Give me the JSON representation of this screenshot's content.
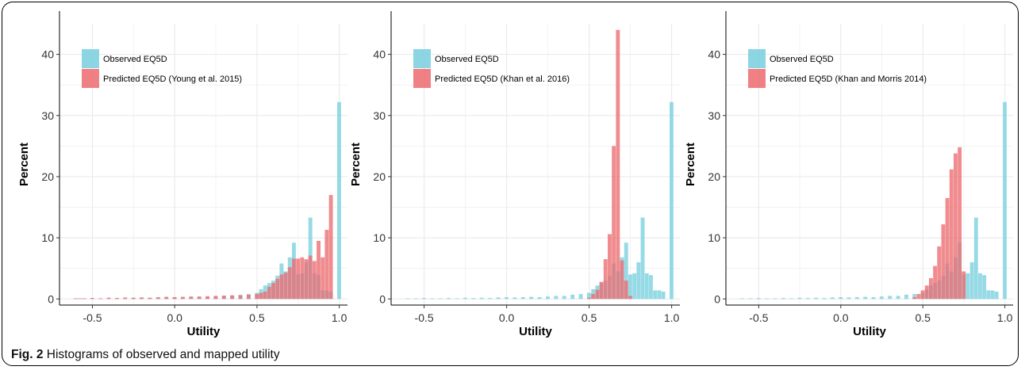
{
  "caption": {
    "label": "Fig. 2",
    "text": " Histograms of observed and mapped utility"
  },
  "colors": {
    "observed": "#78cfdf",
    "predicted": "#ec6b6f",
    "grid": "#ebebeb"
  },
  "chart_data": [
    {
      "type": "bar",
      "xlabel": "Utility",
      "ylabel": "Percent",
      "xlim": [
        -0.7,
        1.05
      ],
      "ylim": [
        -1,
        45
      ],
      "xticks": [
        -0.5,
        0.0,
        0.5,
        1.0
      ],
      "xtick_labels": [
        "-0.5",
        "0.0",
        "0.5",
        "1.0"
      ],
      "yticks": [
        0,
        10,
        20,
        30,
        40
      ],
      "ytick_labels": [
        "0",
        "10",
        "20",
        "30",
        "40"
      ],
      "grid": true,
      "legend_position": "top-left",
      "bin_width": 0.025,
      "series": [
        {
          "name": "Observed EQ5D",
          "color": "#78cfdf",
          "x": [
            -0.6,
            -0.55,
            -0.5,
            -0.45,
            -0.4,
            -0.35,
            -0.3,
            -0.25,
            -0.2,
            -0.15,
            -0.1,
            -0.05,
            0.0,
            0.05,
            0.1,
            0.15,
            0.2,
            0.25,
            0.3,
            0.35,
            0.4,
            0.45,
            0.5,
            0.525,
            0.55,
            0.575,
            0.6,
            0.625,
            0.65,
            0.675,
            0.7,
            0.725,
            0.75,
            0.775,
            0.8,
            0.825,
            0.85,
            0.875,
            0.9,
            0.925,
            0.95,
            1.0
          ],
          "values": [
            0.1,
            0.1,
            0.15,
            0.1,
            0.1,
            0.15,
            0.1,
            0.2,
            0.15,
            0.2,
            0.15,
            0.25,
            0.3,
            0.25,
            0.3,
            0.35,
            0.3,
            0.4,
            0.5,
            0.5,
            0.7,
            0.8,
            1.0,
            1.6,
            2.2,
            2.6,
            3.0,
            3.8,
            5.8,
            4.5,
            6.8,
            9.2,
            4.0,
            4.2,
            6.0,
            13.3,
            4.2,
            3.9,
            1.4,
            1.4,
            1.2,
            32.2
          ]
        },
        {
          "name": "Predicted EQ5D (Young et al. 2015)",
          "color": "#ec6b6f",
          "x": [
            -0.6,
            -0.575,
            -0.55,
            -0.5,
            -0.45,
            -0.4,
            -0.35,
            -0.3,
            -0.25,
            -0.2,
            -0.15,
            -0.1,
            -0.05,
            0.0,
            0.05,
            0.1,
            0.15,
            0.2,
            0.25,
            0.3,
            0.35,
            0.4,
            0.45,
            0.5,
            0.525,
            0.55,
            0.575,
            0.6,
            0.625,
            0.65,
            0.675,
            0.7,
            0.725,
            0.75,
            0.775,
            0.8,
            0.825,
            0.85,
            0.875,
            0.9,
            0.925,
            0.95
          ],
          "values": [
            0.1,
            0.1,
            0.1,
            0.15,
            0.1,
            0.2,
            0.15,
            0.25,
            0.2,
            0.25,
            0.2,
            0.3,
            0.35,
            0.3,
            0.35,
            0.4,
            0.4,
            0.45,
            0.5,
            0.55,
            0.6,
            0.6,
            0.7,
            0.8,
            1.0,
            1.2,
            2.0,
            2.6,
            3.3,
            4.0,
            4.3,
            5.2,
            6.6,
            6.6,
            6.8,
            6.5,
            7.1,
            6.2,
            9.5,
            6.8,
            11.3,
            17.0
          ]
        }
      ]
    },
    {
      "type": "bar",
      "xlabel": "Utility",
      "ylabel": "Percent",
      "xlim": [
        -0.7,
        1.05
      ],
      "ylim": [
        -1,
        45
      ],
      "xticks": [
        -0.5,
        0.0,
        0.5,
        1.0
      ],
      "xtick_labels": [
        "-0.5",
        "0.0",
        "0.5",
        "1.0"
      ],
      "yticks": [
        0,
        10,
        20,
        30,
        40
      ],
      "ytick_labels": [
        "0",
        "10",
        "20",
        "30",
        "40"
      ],
      "grid": true,
      "legend_position": "top-left",
      "bin_width": 0.025,
      "series": [
        {
          "name": "Observed EQ5D",
          "color": "#78cfdf",
          "x": [
            -0.6,
            -0.55,
            -0.5,
            -0.45,
            -0.4,
            -0.35,
            -0.3,
            -0.25,
            -0.2,
            -0.15,
            -0.1,
            -0.05,
            0.0,
            0.05,
            0.1,
            0.15,
            0.2,
            0.25,
            0.3,
            0.35,
            0.4,
            0.45,
            0.5,
            0.525,
            0.55,
            0.575,
            0.6,
            0.625,
            0.65,
            0.675,
            0.7,
            0.725,
            0.75,
            0.775,
            0.8,
            0.825,
            0.85,
            0.875,
            0.9,
            0.925,
            0.95,
            1.0
          ],
          "values": [
            0.1,
            0.1,
            0.15,
            0.1,
            0.1,
            0.15,
            0.1,
            0.2,
            0.15,
            0.2,
            0.15,
            0.25,
            0.3,
            0.25,
            0.3,
            0.35,
            0.3,
            0.4,
            0.5,
            0.5,
            0.7,
            0.8,
            1.0,
            1.6,
            2.2,
            2.6,
            3.0,
            3.8,
            5.8,
            4.5,
            6.8,
            9.2,
            4.0,
            4.2,
            6.0,
            13.3,
            4.2,
            3.9,
            1.4,
            1.4,
            1.2,
            32.2
          ]
        },
        {
          "name": "Predicted EQ5D (Khan et al. 2016)",
          "color": "#ec6b6f",
          "x": [
            0.5,
            0.525,
            0.55,
            0.575,
            0.6,
            0.625,
            0.65,
            0.675,
            0.7,
            0.725,
            0.75
          ],
          "values": [
            0.2,
            0.8,
            1.5,
            2.8,
            6.5,
            10.6,
            25.0,
            44.0,
            6.3,
            3.0,
            0.5
          ]
        }
      ]
    },
    {
      "type": "bar",
      "xlabel": "Utility",
      "ylabel": "Percent",
      "xlim": [
        -0.7,
        1.05
      ],
      "ylim": [
        -1,
        45
      ],
      "xticks": [
        -0.5,
        0.0,
        0.5,
        1.0
      ],
      "xtick_labels": [
        "-0.5",
        "0.0",
        "0.5",
        "1.0"
      ],
      "yticks": [
        0,
        10,
        20,
        30,
        40
      ],
      "ytick_labels": [
        "0",
        "10",
        "20",
        "30",
        "40"
      ],
      "grid": true,
      "legend_position": "top-left",
      "bin_width": 0.025,
      "series": [
        {
          "name": "Observed EQ5D",
          "color": "#78cfdf",
          "x": [
            -0.6,
            -0.55,
            -0.5,
            -0.45,
            -0.4,
            -0.35,
            -0.3,
            -0.25,
            -0.2,
            -0.15,
            -0.1,
            -0.05,
            0.0,
            0.05,
            0.1,
            0.15,
            0.2,
            0.25,
            0.3,
            0.35,
            0.4,
            0.45,
            0.5,
            0.525,
            0.55,
            0.575,
            0.6,
            0.625,
            0.65,
            0.675,
            0.7,
            0.725,
            0.75,
            0.775,
            0.8,
            0.825,
            0.85,
            0.875,
            0.9,
            0.925,
            0.95,
            1.0
          ],
          "values": [
            0.1,
            0.1,
            0.15,
            0.1,
            0.1,
            0.15,
            0.1,
            0.2,
            0.15,
            0.2,
            0.15,
            0.25,
            0.3,
            0.25,
            0.3,
            0.35,
            0.3,
            0.4,
            0.5,
            0.5,
            0.7,
            0.8,
            1.0,
            1.6,
            2.2,
            2.6,
            3.0,
            3.8,
            5.8,
            4.5,
            6.8,
            9.2,
            4.0,
            4.2,
            6.0,
            13.3,
            4.2,
            3.9,
            1.4,
            1.4,
            1.2,
            32.2
          ]
        },
        {
          "name": "Predicted EQ5D (Khan and Morris 2014)",
          "color": "#ec6b6f",
          "x": [
            0.45,
            0.475,
            0.5,
            0.525,
            0.55,
            0.575,
            0.6,
            0.625,
            0.65,
            0.675,
            0.7,
            0.725,
            0.75
          ],
          "values": [
            0.3,
            0.8,
            1.4,
            2.2,
            3.4,
            5.4,
            8.6,
            12.2,
            16.5,
            21.2,
            23.8,
            24.8,
            4.5
          ]
        }
      ]
    }
  ]
}
